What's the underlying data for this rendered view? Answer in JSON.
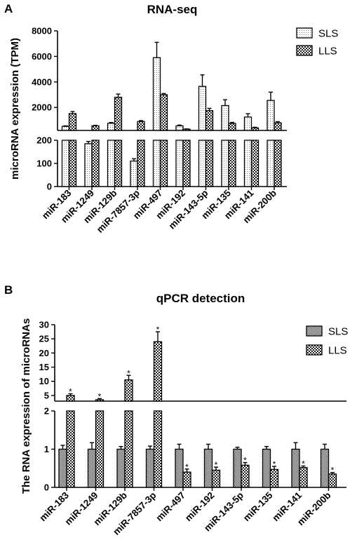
{
  "chart_data": [
    {
      "type": "bar",
      "panel": "A",
      "title": "RNA-seq",
      "ylabel": "microRNA expression (TPM)",
      "categories": [
        "miR-183",
        "miR-1249",
        "miR-129b",
        "miR-7857-3p",
        "miR-497",
        "miR-192",
        "miR-143-5p",
        "miR-135",
        "miR-141",
        "miR-200b"
      ],
      "series": [
        {
          "name": "SLS",
          "pattern": "dots",
          "values": [
            520,
            185,
            760,
            110,
            5900,
            560,
            3650,
            2150,
            1250,
            2550
          ],
          "errors": [
            40,
            10,
            60,
            10,
            1200,
            60,
            900,
            450,
            260,
            650
          ]
        },
        {
          "name": "LLS",
          "pattern": "checker",
          "values": [
            1520,
            560,
            2800,
            900,
            3000,
            300,
            1750,
            750,
            400,
            800
          ],
          "errors": [
            160,
            40,
            250,
            70,
            90,
            20,
            180,
            80,
            50,
            90
          ]
        }
      ],
      "y_segments": [
        {
          "range": [
            0,
            200
          ],
          "ticks": [
            0,
            100,
            200
          ]
        },
        {
          "range": [
            200,
            8000
          ],
          "ticks": [
            2000,
            4000,
            6000,
            8000
          ]
        }
      ],
      "legend": "top-right"
    },
    {
      "type": "bar",
      "panel": "B",
      "title": "qPCR detection",
      "ylabel": "The RNA expression of microRNAs",
      "categories": [
        "miR-183",
        "miR-1249",
        "miR-129b",
        "miR-7857-3p",
        "miR-497",
        "miR-192",
        "miR-143-5p",
        "miR-135",
        "miR-141",
        "miR-200b"
      ],
      "series": [
        {
          "name": "SLS",
          "pattern": "checker-fine",
          "values": [
            1.0,
            1.0,
            1.0,
            1.0,
            1.0,
            1.0,
            1.0,
            1.0,
            1.0,
            1.0
          ],
          "errors": [
            0.1,
            0.17,
            0.07,
            0.08,
            0.13,
            0.13,
            0.05,
            0.07,
            0.17,
            0.13
          ]
        },
        {
          "name": "LLS",
          "pattern": "checker",
          "values": [
            5.0,
            3.5,
            10.5,
            24.0,
            0.4,
            0.45,
            0.58,
            0.47,
            0.52,
            0.35
          ],
          "errors": [
            0.6,
            0.4,
            1.6,
            3.5,
            0.08,
            0.08,
            0.07,
            0.08,
            0.04,
            0.04
          ]
        }
      ],
      "significance": [
        "*",
        "*",
        "*",
        "*",
        "*",
        "*",
        "*",
        "*",
        "*",
        "*"
      ],
      "y_segments": [
        {
          "range": [
            0,
            2
          ],
          "ticks": [
            0,
            1,
            2
          ]
        },
        {
          "range": [
            3,
            30
          ],
          "ticks": [
            5,
            10,
            15,
            20,
            25,
            30
          ]
        }
      ],
      "legend": "top-right"
    }
  ]
}
